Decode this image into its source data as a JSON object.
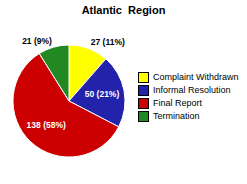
{
  "chart_data": {
    "type": "pie",
    "title": "Atlantic  Region",
    "categories": [
      "Complaint Withdrawn",
      "Informal Resolution",
      "Final Report",
      "Termination"
    ],
    "values": [
      27,
      50,
      138,
      21
    ],
    "value_labels": [
      "27 (11%)",
      "50 (21%)",
      "138 (58%)",
      "21 (9%)"
    ],
    "colors": [
      "#FFFF00",
      "#2222AA",
      "#CC0000",
      "#228822"
    ],
    "data_labels": true,
    "legend": "right"
  }
}
